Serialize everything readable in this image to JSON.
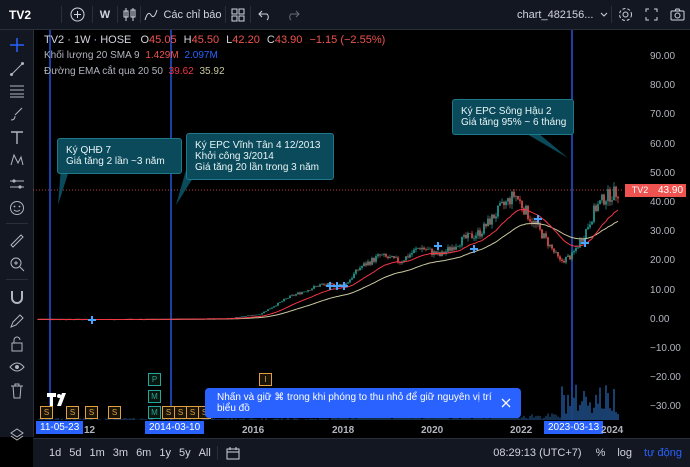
{
  "topbar": {
    "symbol": "TV2",
    "interval": "W",
    "indicators_label": "Các chỉ báo",
    "layout_name": "chart_482156..."
  },
  "legend": {
    "title": "TV2 · 1W · HOSE",
    "ohlc": {
      "o_label": "O",
      "o": "45.05",
      "h_label": "H",
      "h": "45.50",
      "l_label": "L",
      "l": "42.20",
      "c_label": "C",
      "c": "43.90",
      "change": "−1.15 (−2.55%)"
    },
    "volume": {
      "label": "Khối lượng 20 SMA 9",
      "v1": "1.429M",
      "v2": "2.097M"
    },
    "ema": {
      "label": "Đường EMA cắt qua 20 50",
      "v1": "39.62",
      "v2": "35.92"
    }
  },
  "callouts": [
    {
      "text": "Ký QHĐ 7\nGiá tăng 2 lần ~3 năm"
    },
    {
      "text": "Ký EPC Vĩnh Tân 4 12/2013\nKhởi công 3/2014\nGiá tăng 20 lần trong 3 năm"
    },
    {
      "text": "Ký EPC Sông Hậu 2\nGiá tăng 95% ~ 6 tháng"
    }
  ],
  "price_axis": [
    "90.00",
    "80.00",
    "70.00",
    "60.00",
    "50.00",
    "40.00",
    "30.00",
    "20.00",
    "10.00",
    "0.00",
    "−10.00",
    "−20.00",
    "−30.00"
  ],
  "price_label": {
    "symbol": "TV2",
    "price": "43.90"
  },
  "time_axis": {
    "labels": [
      "12",
      "2016",
      "2018",
      "2020",
      "2022",
      "2024"
    ],
    "highlights": [
      "11-05-23",
      "2014-03-10",
      "2023-03-13"
    ]
  },
  "toast": {
    "text": "Nhấn và giữ ⌘ trong khi phóng to thu nhỏ để giữ nguyên vị trí biểu đồ"
  },
  "bottombar": {
    "ranges": [
      "1d",
      "5d",
      "1m",
      "3m",
      "6m",
      "1y",
      "5y",
      "All"
    ],
    "time": "08:29:13 (UTC+7)",
    "pct": "%",
    "log": "log",
    "auto": "tự động"
  },
  "events": {
    "s": "S",
    "p": "P",
    "m": "M",
    "i": "I"
  },
  "colors": {
    "up": "#26a69a",
    "down": "#ef5350",
    "accent": "#2962ff",
    "ema_fast": "#f23645",
    "ema_slow": "#c8c8a0"
  }
}
